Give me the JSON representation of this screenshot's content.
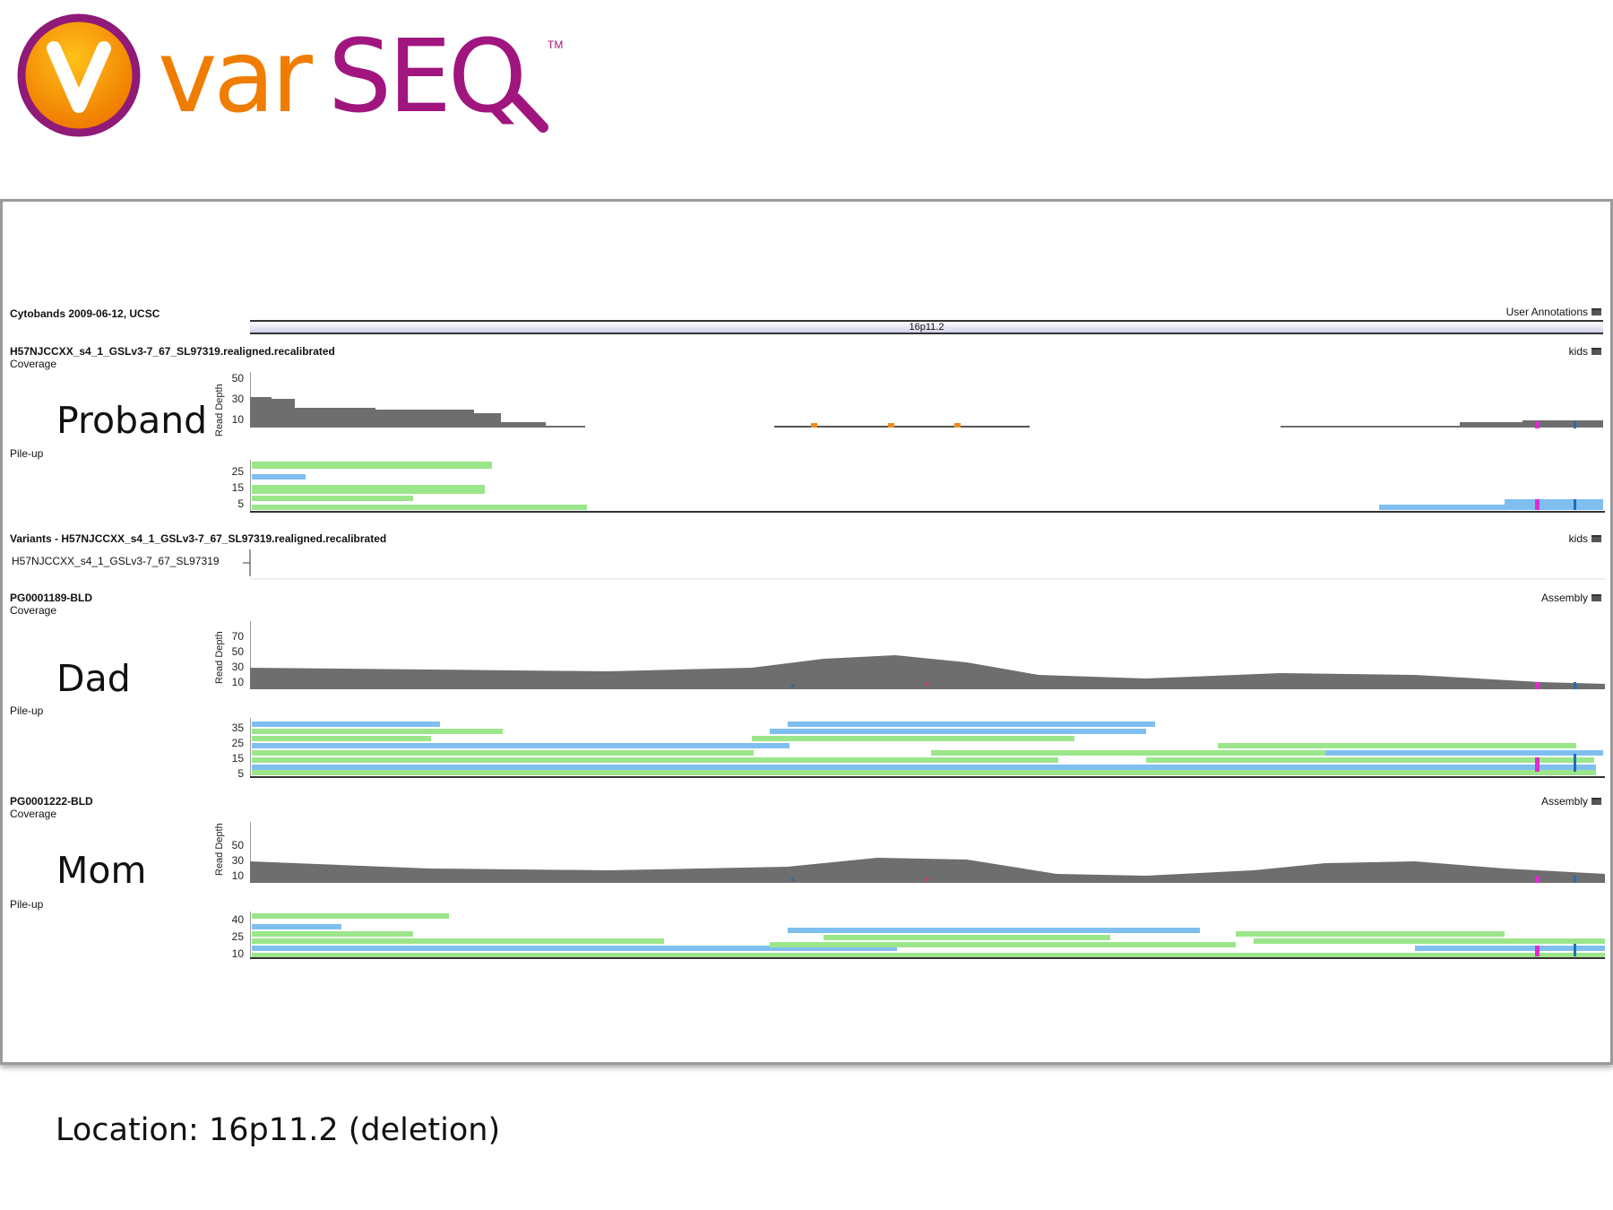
{
  "logo": {
    "text": "varSEQ",
    "trademark": "TM",
    "colors": {
      "var": "#f07c00",
      "seq": "#a1157e",
      "badge": "#f59a00"
    }
  },
  "cytobands": {
    "title": "Cytobands 2009-06-12, UCSC",
    "band_label": "16p11.2",
    "annotation": "User Annotations"
  },
  "proband": {
    "track_title": "H57NJCCXX_s4_1_GSLv3-7_67_SL97319.realigned.recalibrated",
    "coverage_label": "Coverage",
    "pileup_label": "Pile-up",
    "member_label": "Proband",
    "annotation": "kids",
    "y_axis_label": "Read Depth",
    "coverage_ticks": [
      "50",
      "30",
      "10"
    ],
    "pileup_ticks": [
      "25",
      "15",
      "5"
    ]
  },
  "variants": {
    "track_title": "Variants - H57NJCCXX_s4_1_GSLv3-7_67_SL97319.realigned.recalibrated",
    "sample_label": "H57NJCCXX_s4_1_GSLv3-7_67_SL97319",
    "annotation": "kids"
  },
  "dad": {
    "track_title": "PG0001189-BLD",
    "coverage_label": "Coverage",
    "pileup_label": "Pile-up",
    "member_label": "Dad",
    "annotation": "Assembly",
    "y_axis_label": "Read Depth",
    "coverage_ticks": [
      "70",
      "50",
      "30",
      "10"
    ],
    "pileup_ticks": [
      "35",
      "25",
      "15",
      "5"
    ]
  },
  "mom": {
    "track_title": "PG0001222-BLD",
    "coverage_label": "Coverage",
    "pileup_label": "Pile-up",
    "member_label": "Mom",
    "annotation": "Assembly",
    "y_axis_label": "Read Depth",
    "coverage_ticks": [
      "50",
      "30",
      "10"
    ],
    "pileup_ticks": [
      "40",
      "25",
      "10"
    ]
  },
  "location": "Location: 16p11.2 (deletion)",
  "colors": {
    "coverage": "#6e6e6e",
    "read_forward": "#9be68a",
    "read_reverse": "#7fbff0",
    "variant_pink": "#e02ad0",
    "variant_orange": "#f08a1e"
  }
}
